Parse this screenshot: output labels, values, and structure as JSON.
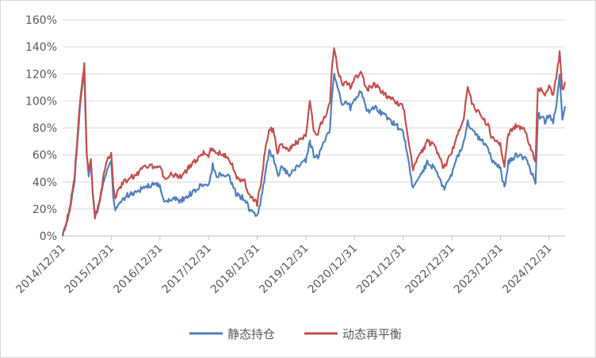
{
  "chart_data": {
    "type": "line",
    "title": "",
    "xlabel": "",
    "ylabel": "",
    "ylim": [
      0,
      160
    ],
    "y_unit": "%",
    "y_ticks": [
      "0%",
      "20%",
      "40%",
      "60%",
      "80%",
      "100%",
      "120%",
      "140%",
      "160%"
    ],
    "x_ticks": [
      "2014/12/31",
      "2015/12/31",
      "2016/12/31",
      "2017/12/31",
      "2018/12/31",
      "2019/12/31",
      "2020/12/31",
      "2021/12/31",
      "2022/12/31",
      "2023/12/31",
      "2024/12/31"
    ],
    "xlim": [
      "2014/12/31",
      "2025/04/30"
    ],
    "grid": "horizontal",
    "legend_position": "bottom",
    "series": [
      {
        "name": "静态持仓",
        "color": "#4f81bd",
        "points": [
          [
            "2014/12/31",
            0
          ],
          [
            "2015/01/31",
            10
          ],
          [
            "2015/02/28",
            22
          ],
          [
            "2015/03/31",
            42
          ],
          [
            "2015/04/15",
            62
          ],
          [
            "2015/04/30",
            80
          ],
          [
            "2015/05/15",
            100
          ],
          [
            "2015/05/31",
            112
          ],
          [
            "2015/06/12",
            120
          ],
          [
            "2015/06/30",
            60
          ],
          [
            "2015/07/15",
            45
          ],
          [
            "2015/07/31",
            55
          ],
          [
            "2015/08/15",
            30
          ],
          [
            "2015/08/31",
            15
          ],
          [
            "2015/09/30",
            22
          ],
          [
            "2015/10/31",
            38
          ],
          [
            "2015/11/30",
            50
          ],
          [
            "2015/12/31",
            55
          ],
          [
            "2016/01/15",
            28
          ],
          [
            "2016/01/31",
            18
          ],
          [
            "2016/02/29",
            25
          ],
          [
            "2016/04/30",
            30
          ],
          [
            "2016/06/30",
            32
          ],
          [
            "2016/08/31",
            36
          ],
          [
            "2016/10/31",
            38
          ],
          [
            "2016/12/31",
            37
          ],
          [
            "2017/01/31",
            25
          ],
          [
            "2017/03/31",
            28
          ],
          [
            "2017/05/31",
            26
          ],
          [
            "2017/07/31",
            30
          ],
          [
            "2017/09/30",
            34
          ],
          [
            "2017/11/30",
            40
          ],
          [
            "2017/12/31",
            38
          ],
          [
            "2018/01/31",
            52
          ],
          [
            "2018/02/28",
            44
          ],
          [
            "2018/03/31",
            46
          ],
          [
            "2018/05/31",
            44
          ],
          [
            "2018/07/31",
            30
          ],
          [
            "2018/09/30",
            28
          ],
          [
            "2018/10/31",
            20
          ],
          [
            "2018/12/31",
            14
          ],
          [
            "2019/01/31",
            28
          ],
          [
            "2019/02/28",
            45
          ],
          [
            "2019/03/31",
            62
          ],
          [
            "2019/04/30",
            60
          ],
          [
            "2019/05/31",
            45
          ],
          [
            "2019/06/30",
            50
          ],
          [
            "2019/08/31",
            46
          ],
          [
            "2019/10/31",
            52
          ],
          [
            "2019/12/31",
            56
          ],
          [
            "2020/01/31",
            70
          ],
          [
            "2020/02/29",
            60
          ],
          [
            "2020/03/31",
            58
          ],
          [
            "2020/04/30",
            68
          ],
          [
            "2020/05/31",
            72
          ],
          [
            "2020/06/30",
            80
          ],
          [
            "2020/07/15",
            105
          ],
          [
            "2020/07/31",
            118
          ],
          [
            "2020/08/31",
            108
          ],
          [
            "2020/09/30",
            98
          ],
          [
            "2020/10/31",
            100
          ],
          [
            "2020/11/30",
            95
          ],
          [
            "2020/12/31",
            100
          ],
          [
            "2021/02/15",
            108
          ],
          [
            "2021/03/31",
            92
          ],
          [
            "2021/05/31",
            95
          ],
          [
            "2021/07/31",
            90
          ],
          [
            "2021/09/30",
            85
          ],
          [
            "2021/11/30",
            80
          ],
          [
            "2021/12/31",
            78
          ],
          [
            "2022/01/31",
            60
          ],
          [
            "2022/03/15",
            35
          ],
          [
            "2022/04/30",
            42
          ],
          [
            "2022/06/30",
            54
          ],
          [
            "2022/08/31",
            50
          ],
          [
            "2022/10/31",
            35
          ],
          [
            "2022/12/31",
            45
          ],
          [
            "2023/01/31",
            55
          ],
          [
            "2023/03/31",
            70
          ],
          [
            "2023/04/30",
            85
          ],
          [
            "2023/05/31",
            78
          ],
          [
            "2023/07/31",
            72
          ],
          [
            "2023/09/30",
            65
          ],
          [
            "2023/10/31",
            55
          ],
          [
            "2023/12/31",
            50
          ],
          [
            "2024/01/31",
            35
          ],
          [
            "2024/02/29",
            55
          ],
          [
            "2024/04/30",
            60
          ],
          [
            "2024/06/30",
            58
          ],
          [
            "2024/08/31",
            45
          ],
          [
            "2024/09/20",
            38
          ],
          [
            "2024/10/08",
            90
          ],
          [
            "2024/11/30",
            85
          ],
          [
            "2024/12/31",
            90
          ],
          [
            "2025/01/31",
            85
          ],
          [
            "2025/02/28",
            100
          ],
          [
            "2025/03/20",
            120
          ],
          [
            "2025/04/10",
            85
          ],
          [
            "2025/04/30",
            96
          ]
        ]
      },
      {
        "name": "动态再平衡",
        "color": "#c0504d",
        "points": [
          [
            "2014/12/31",
            0
          ],
          [
            "2015/01/31",
            11
          ],
          [
            "2015/02/28",
            24
          ],
          [
            "2015/03/31",
            45
          ],
          [
            "2015/04/15",
            65
          ],
          [
            "2015/04/30",
            85
          ],
          [
            "2015/05/15",
            105
          ],
          [
            "2015/05/31",
            118
          ],
          [
            "2015/06/12",
            128
          ],
          [
            "2015/06/30",
            62
          ],
          [
            "2015/07/15",
            48
          ],
          [
            "2015/07/31",
            58
          ],
          [
            "2015/08/15",
            32
          ],
          [
            "2015/08/31",
            14
          ],
          [
            "2015/09/30",
            25
          ],
          [
            "2015/10/31",
            42
          ],
          [
            "2015/11/30",
            56
          ],
          [
            "2015/12/31",
            62
          ],
          [
            "2016/01/15",
            38
          ],
          [
            "2016/01/31",
            28
          ],
          [
            "2016/02/29",
            36
          ],
          [
            "2016/04/30",
            42
          ],
          [
            "2016/06/30",
            45
          ],
          [
            "2016/08/31",
            50
          ],
          [
            "2016/10/31",
            52
          ],
          [
            "2016/12/31",
            52
          ],
          [
            "2017/01/31",
            42
          ],
          [
            "2017/03/31",
            46
          ],
          [
            "2017/05/31",
            44
          ],
          [
            "2017/07/31",
            50
          ],
          [
            "2017/09/30",
            56
          ],
          [
            "2017/11/30",
            62
          ],
          [
            "2017/12/31",
            60
          ],
          [
            "2018/01/31",
            66
          ],
          [
            "2018/02/28",
            60
          ],
          [
            "2018/03/31",
            62
          ],
          [
            "2018/05/31",
            58
          ],
          [
            "2018/07/31",
            44
          ],
          [
            "2018/09/30",
            40
          ],
          [
            "2018/10/31",
            30
          ],
          [
            "2018/12/31",
            24
          ],
          [
            "2019/01/31",
            42
          ],
          [
            "2019/02/28",
            62
          ],
          [
            "2019/03/31",
            80
          ],
          [
            "2019/04/30",
            78
          ],
          [
            "2019/05/31",
            62
          ],
          [
            "2019/06/30",
            68
          ],
          [
            "2019/08/31",
            64
          ],
          [
            "2019/10/31",
            70
          ],
          [
            "2019/12/31",
            74
          ],
          [
            "2020/01/31",
            100
          ],
          [
            "2020/02/29",
            78
          ],
          [
            "2020/03/31",
            75
          ],
          [
            "2020/04/30",
            85
          ],
          [
            "2020/05/31",
            90
          ],
          [
            "2020/06/30",
            100
          ],
          [
            "2020/07/15",
            125
          ],
          [
            "2020/07/31",
            138
          ],
          [
            "2020/08/31",
            122
          ],
          [
            "2020/09/30",
            112
          ],
          [
            "2020/10/31",
            115
          ],
          [
            "2020/11/30",
            110
          ],
          [
            "2020/12/31",
            116
          ],
          [
            "2021/02/15",
            122
          ],
          [
            "2021/03/31",
            108
          ],
          [
            "2021/05/31",
            112
          ],
          [
            "2021/07/31",
            106
          ],
          [
            "2021/09/30",
            102
          ],
          [
            "2021/11/30",
            98
          ],
          [
            "2021/12/31",
            96
          ],
          [
            "2022/01/31",
            78
          ],
          [
            "2022/03/15",
            50
          ],
          [
            "2022/04/30",
            58
          ],
          [
            "2022/06/30",
            70
          ],
          [
            "2022/08/31",
            66
          ],
          [
            "2022/10/31",
            50
          ],
          [
            "2022/12/31",
            62
          ],
          [
            "2023/01/31",
            72
          ],
          [
            "2023/03/31",
            88
          ],
          [
            "2023/04/30",
            110
          ],
          [
            "2023/05/31",
            98
          ],
          [
            "2023/07/31",
            90
          ],
          [
            "2023/09/30",
            82
          ],
          [
            "2023/10/31",
            72
          ],
          [
            "2023/12/31",
            68
          ],
          [
            "2024/01/31",
            52
          ],
          [
            "2024/02/29",
            76
          ],
          [
            "2024/04/30",
            82
          ],
          [
            "2024/06/30",
            78
          ],
          [
            "2024/08/31",
            62
          ],
          [
            "2024/09/20",
            55
          ],
          [
            "2024/10/08",
            110
          ],
          [
            "2024/11/30",
            105
          ],
          [
            "2024/12/31",
            110
          ],
          [
            "2025/01/31",
            105
          ],
          [
            "2025/02/28",
            120
          ],
          [
            "2025/03/20",
            136
          ],
          [
            "2025/04/10",
            108
          ],
          [
            "2025/04/30",
            114
          ]
        ]
      }
    ]
  }
}
